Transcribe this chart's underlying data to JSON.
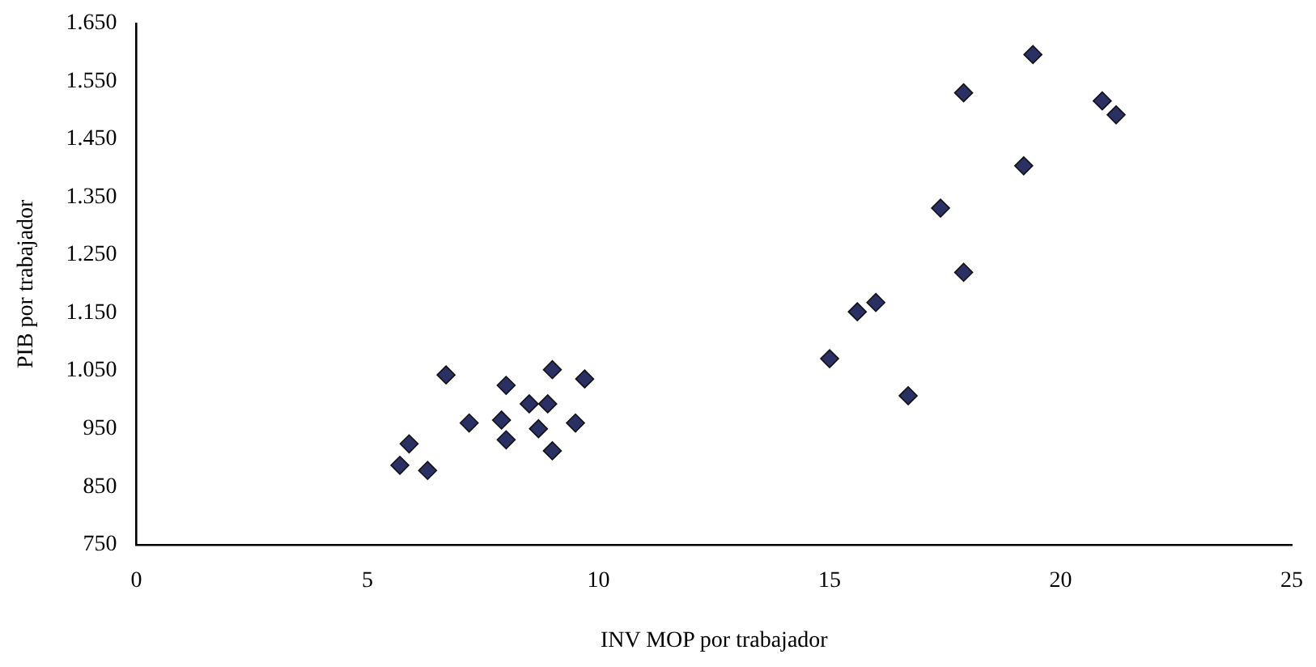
{
  "chart_data": {
    "type": "scatter",
    "xlabel": "INV MOP por trabajador",
    "ylabel": "PIB por trabajador",
    "marker": "diamond",
    "grid": false,
    "legend": false,
    "xlim": [
      0,
      25
    ],
    "xticks": [
      0,
      5,
      10,
      15,
      20,
      25
    ],
    "ylim": [
      750,
      1650
    ],
    "yticks": [
      {
        "value": 750,
        "label": "750"
      },
      {
        "value": 850,
        "label": "850"
      },
      {
        "value": 950,
        "label": "950"
      },
      {
        "value": 1050,
        "label": "1.050"
      },
      {
        "value": 1150,
        "label": "1.150"
      },
      {
        "value": 1250,
        "label": "1.250"
      },
      {
        "value": 1350,
        "label": "1.350"
      },
      {
        "value": 1450,
        "label": "1.450"
      },
      {
        "value": 1550,
        "label": "1.550"
      },
      {
        "value": 1650,
        "label": "1.650"
      }
    ],
    "series": [
      {
        "color": "#2b3064",
        "x": [
          6.7,
          5.7,
          6.3,
          5.9,
          7.2,
          7.9,
          8.0,
          8.0,
          8.5,
          8.9,
          9.0,
          8.7,
          9.0,
          9.5,
          9.7,
          19.4,
          17.9,
          20.9,
          21.2,
          19.2,
          17.4,
          17.9,
          16.0,
          15.6,
          15.0,
          16.7
        ],
        "values": [
          1043,
          887,
          878,
          924,
          960,
          965,
          1025,
          931,
          993,
          993,
          1052,
          950,
          912,
          960,
          1036,
          1596,
          1530,
          1516,
          1492,
          1404,
          1331,
          1220,
          1168,
          1152,
          1071,
          1007
        ]
      }
    ]
  }
}
